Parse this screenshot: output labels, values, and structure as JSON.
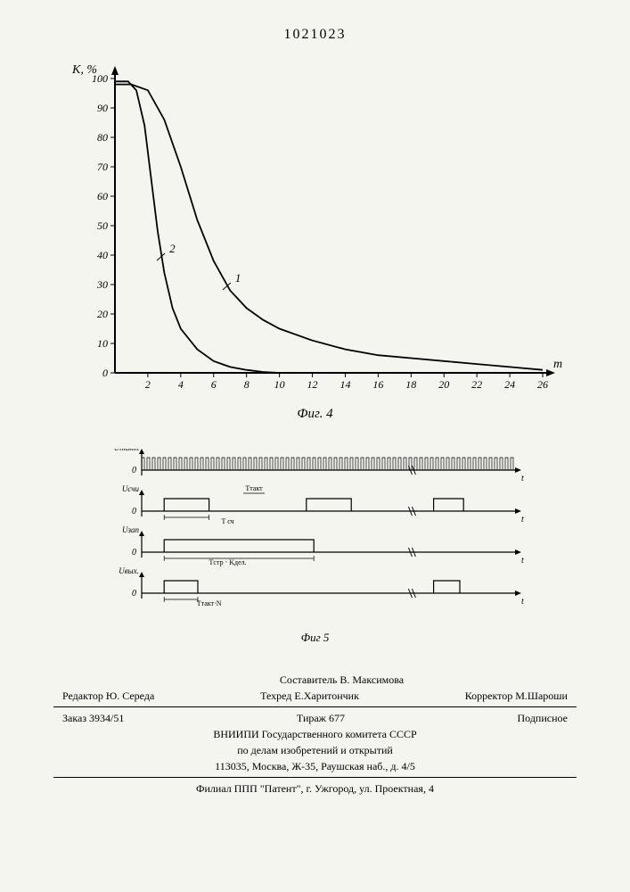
{
  "doc_number": "1021023",
  "fig4": {
    "caption": "Фиг. 4",
    "type": "line",
    "ylabel": "K, %",
    "xlabel": "m",
    "ylabel_font_style": "italic",
    "xlabel_font_style": "italic",
    "ylim": [
      0,
      100
    ],
    "xlim": [
      0,
      26
    ],
    "yticks": [
      0,
      10,
      20,
      30,
      40,
      50,
      60,
      70,
      80,
      90,
      100
    ],
    "xticks": [
      2,
      4,
      6,
      8,
      10,
      12,
      14,
      16,
      18,
      20,
      22,
      24,
      26
    ],
    "line_color": "#000000",
    "line_width": 1.8,
    "axis_color": "#000000",
    "axis_width": 2,
    "tick_font_size": 12,
    "tick_font_style": "italic",
    "label_font_size": 14,
    "curves": {
      "1": {
        "label": "1",
        "marker_label_pos": {
          "x": 7.2,
          "y": 30
        },
        "points": [
          {
            "x": 0,
            "y": 98
          },
          {
            "x": 1,
            "y": 98
          },
          {
            "x": 2,
            "y": 96
          },
          {
            "x": 3,
            "y": 86
          },
          {
            "x": 4,
            "y": 70
          },
          {
            "x": 5,
            "y": 52
          },
          {
            "x": 6,
            "y": 38
          },
          {
            "x": 7,
            "y": 28
          },
          {
            "x": 8,
            "y": 22
          },
          {
            "x": 9,
            "y": 18
          },
          {
            "x": 10,
            "y": 15
          },
          {
            "x": 12,
            "y": 11
          },
          {
            "x": 14,
            "y": 8
          },
          {
            "x": 16,
            "y": 6
          },
          {
            "x": 18,
            "y": 5
          },
          {
            "x": 20,
            "y": 4
          },
          {
            "x": 22,
            "y": 3
          },
          {
            "x": 24,
            "y": 2
          },
          {
            "x": 26,
            "y": 1
          }
        ]
      },
      "2": {
        "label": "2",
        "marker_label_pos": {
          "x": 3.2,
          "y": 40
        },
        "points": [
          {
            "x": 0,
            "y": 99
          },
          {
            "x": 0.8,
            "y": 99
          },
          {
            "x": 1.3,
            "y": 96
          },
          {
            "x": 1.8,
            "y": 84
          },
          {
            "x": 2.2,
            "y": 66
          },
          {
            "x": 2.6,
            "y": 48
          },
          {
            "x": 3,
            "y": 34
          },
          {
            "x": 3.5,
            "y": 22
          },
          {
            "x": 4,
            "y": 15
          },
          {
            "x": 5,
            "y": 8
          },
          {
            "x": 6,
            "y": 4
          },
          {
            "x": 7,
            "y": 2
          },
          {
            "x": 8,
            "y": 1
          },
          {
            "x": 9,
            "y": 0.3
          },
          {
            "x": 10,
            "y": 0
          }
        ]
      }
    }
  },
  "fig5": {
    "caption": "Фиг 5",
    "type": "timing-diagram",
    "line_color": "#000000",
    "signals": [
      {
        "label": "Uтакт",
        "break_pos": 0.72,
        "type": "clock"
      },
      {
        "label": "Uсчи",
        "break_pos": 0.72,
        "type": "pulse",
        "pulses": [
          {
            "s": 0.06,
            "e": 0.18
          },
          {
            "s": 0.44,
            "e": 0.56
          },
          {
            "s": 0.78,
            "e": 0.86
          }
        ],
        "sublabel": "T сч",
        "sublabel_pos": 0.23,
        "toplabel": "Tтакт",
        "toplabel_pos": 0.3
      },
      {
        "label": "Uзап",
        "break_pos": 0.72,
        "type": "pulse",
        "pulses": [
          {
            "s": 0.06,
            "e": 0.46
          }
        ],
        "sublabel": "Tстр · Kдел.",
        "sublabel_pos": 0.23
      },
      {
        "label": "Uвых.",
        "break_pos": 0.72,
        "type": "pulse",
        "pulses": [
          {
            "s": 0.06,
            "e": 0.15
          },
          {
            "s": 0.78,
            "e": 0.85
          }
        ],
        "sublabel": "Tтакт·N",
        "sublabel_pos": 0.18
      }
    ]
  },
  "footer": {
    "author": "Составитель В. Максимова",
    "editor": "Редактор Ю. Середа",
    "tech": "Техред Е.Харитончик",
    "corrector": "Корректор М.Шароши",
    "order": "Заказ 3934/51",
    "tirage": "Тираж 677",
    "subscription": "Подписное",
    "org1": "ВНИИПИ Государственного комитета СССР",
    "org2": "по делам изобретений и открытий",
    "address": "113035, Москва, Ж-35, Раушская наб., д. 4/5",
    "branch": "Филиал ППП \"Патент\", г. Ужгород, ул. Проектная, 4"
  }
}
